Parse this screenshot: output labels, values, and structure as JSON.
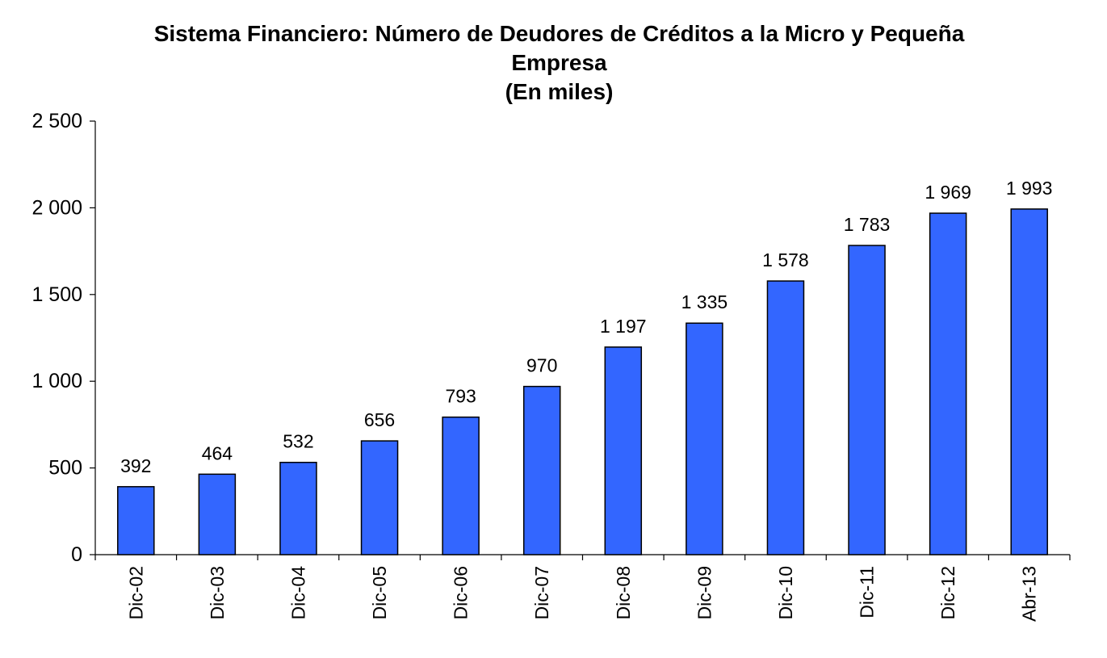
{
  "chart_data": {
    "type": "bar",
    "title": "Sistema Financiero: Número de Deudores de Créditos a la Micro y Pequeña Empresa",
    "subtitle": "(En miles)",
    "categories": [
      "Dic-02",
      "Dic-03",
      "Dic-04",
      "Dic-05",
      "Dic-06",
      "Dic-07",
      "Dic-08",
      "Dic-09",
      "Dic-10",
      "Dic-11",
      "Dic-12",
      "Abr-13"
    ],
    "values": [
      392,
      464,
      532,
      656,
      793,
      970,
      1197,
      1335,
      1578,
      1783,
      1969,
      1993
    ],
    "value_labels": [
      "392",
      "464",
      "532",
      "656",
      "793",
      "970",
      "1 197",
      "1 335",
      "1 578",
      "1 783",
      "1 969",
      "1 993"
    ],
    "color": "#3366ff",
    "ylim": [
      0,
      2500
    ],
    "yticks": [
      0,
      500,
      {
        "value": 1000,
        "label": "1 000"
      },
      {
        "value": 1500,
        "label": "1 500"
      },
      {
        "value": 2000,
        "label": "2 000"
      },
      {
        "value": 2500,
        "label": "2 500"
      }
    ],
    "grid": false
  }
}
